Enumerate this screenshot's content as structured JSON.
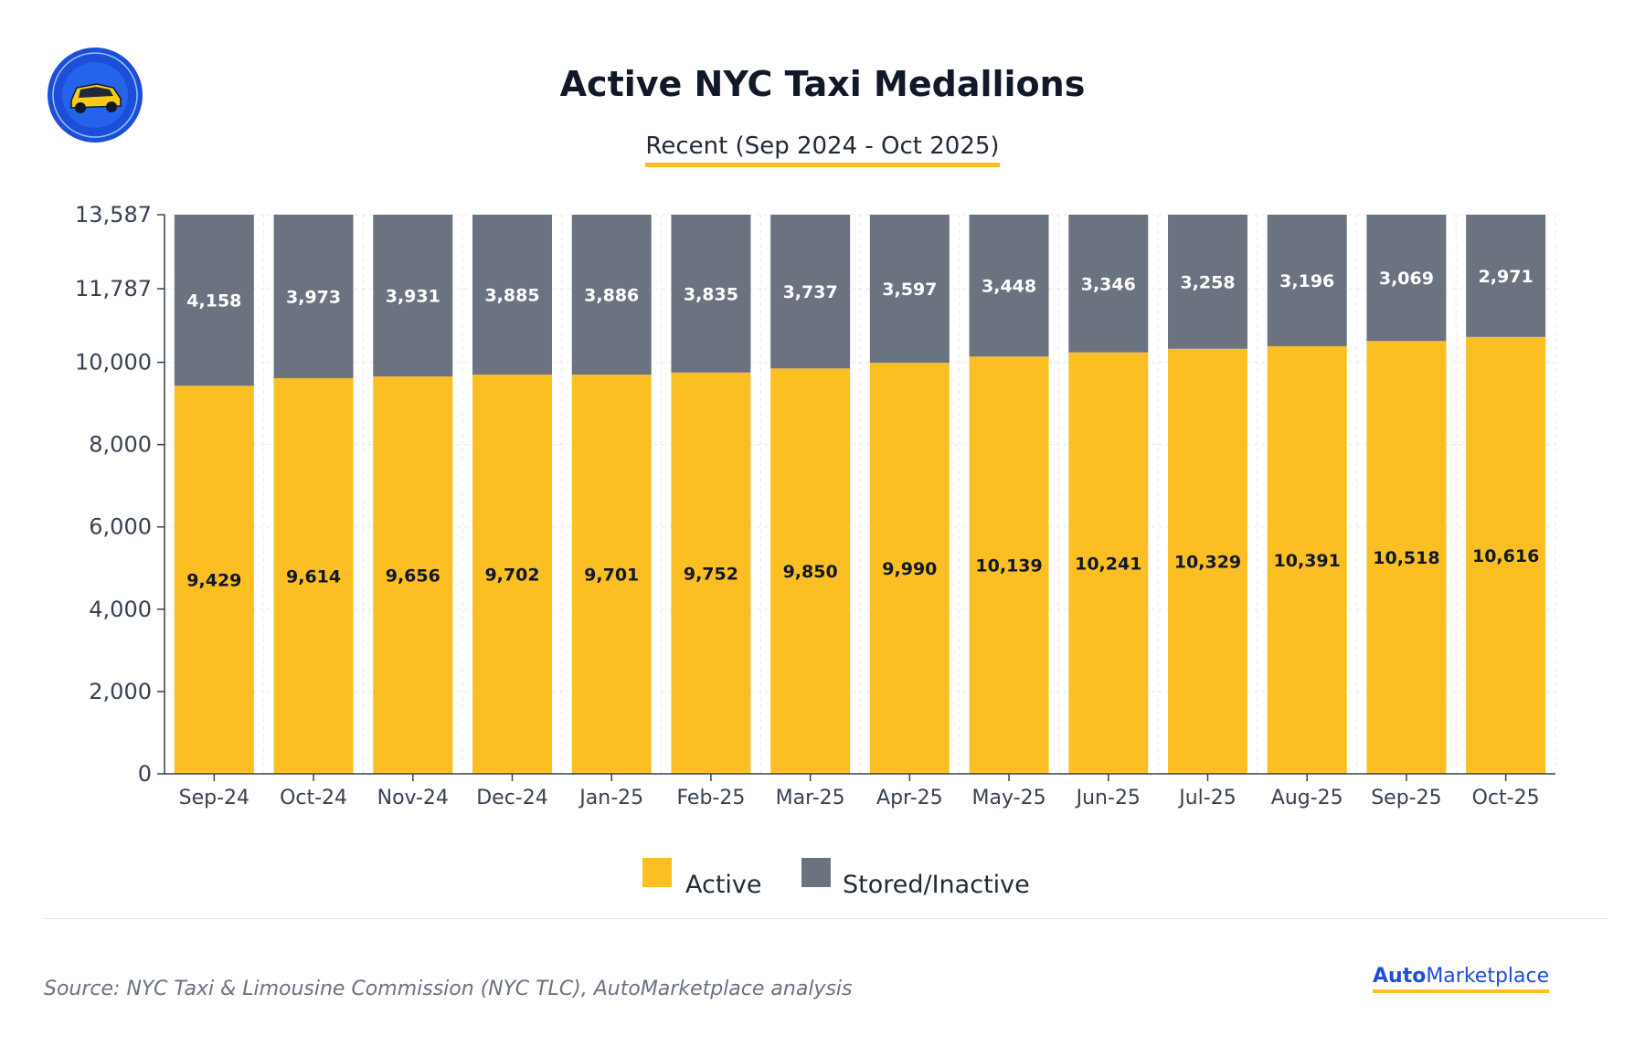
{
  "colors": {
    "active": "#fbbf24",
    "stored": "#6b7280",
    "axis": "#374151",
    "grid": "#e5e7eb",
    "accent": "#fbbf24",
    "brand": "#1d4ed8"
  },
  "logo": {
    "text": "AUTOMARKETPLACE",
    "icon": "taxi-icon"
  },
  "chart_data": {
    "type": "bar",
    "stacked": true,
    "title": "Active NYC Taxi Medallions",
    "subtitle": "Recent (Sep 2024 - Oct 2025)",
    "categories": [
      "Sep-24",
      "Oct-24",
      "Nov-24",
      "Dec-24",
      "Jan-25",
      "Feb-25",
      "Mar-25",
      "Apr-25",
      "May-25",
      "Jun-25",
      "Jul-25",
      "Aug-25",
      "Sep-25",
      "Oct-25"
    ],
    "series": [
      {
        "name": "Active",
        "values": [
          9429,
          9614,
          9656,
          9702,
          9701,
          9752,
          9850,
          9990,
          10139,
          10241,
          10329,
          10391,
          10518,
          10616
        ]
      },
      {
        "name": "Stored/Inactive",
        "values": [
          4158,
          3973,
          3931,
          3885,
          3886,
          3835,
          3737,
          3597,
          3448,
          3346,
          3258,
          3196,
          3069,
          2971
        ]
      }
    ],
    "yticks": [
      0,
      2000,
      4000,
      6000,
      8000,
      10000,
      11787,
      13587
    ],
    "ytick_labels": [
      "0",
      "2,000",
      "4,000",
      "6,000",
      "8,000",
      "10,000",
      "11,787",
      "13,587"
    ],
    "ylim": [
      0,
      13587
    ],
    "legend": "bottom-center",
    "grid": true,
    "source": "Source: NYC Taxi & Limousine Commission (NYC TLC), AutoMarketplace analysis"
  },
  "brand": {
    "part1": "Auto",
    "part2": "Marketplace"
  }
}
